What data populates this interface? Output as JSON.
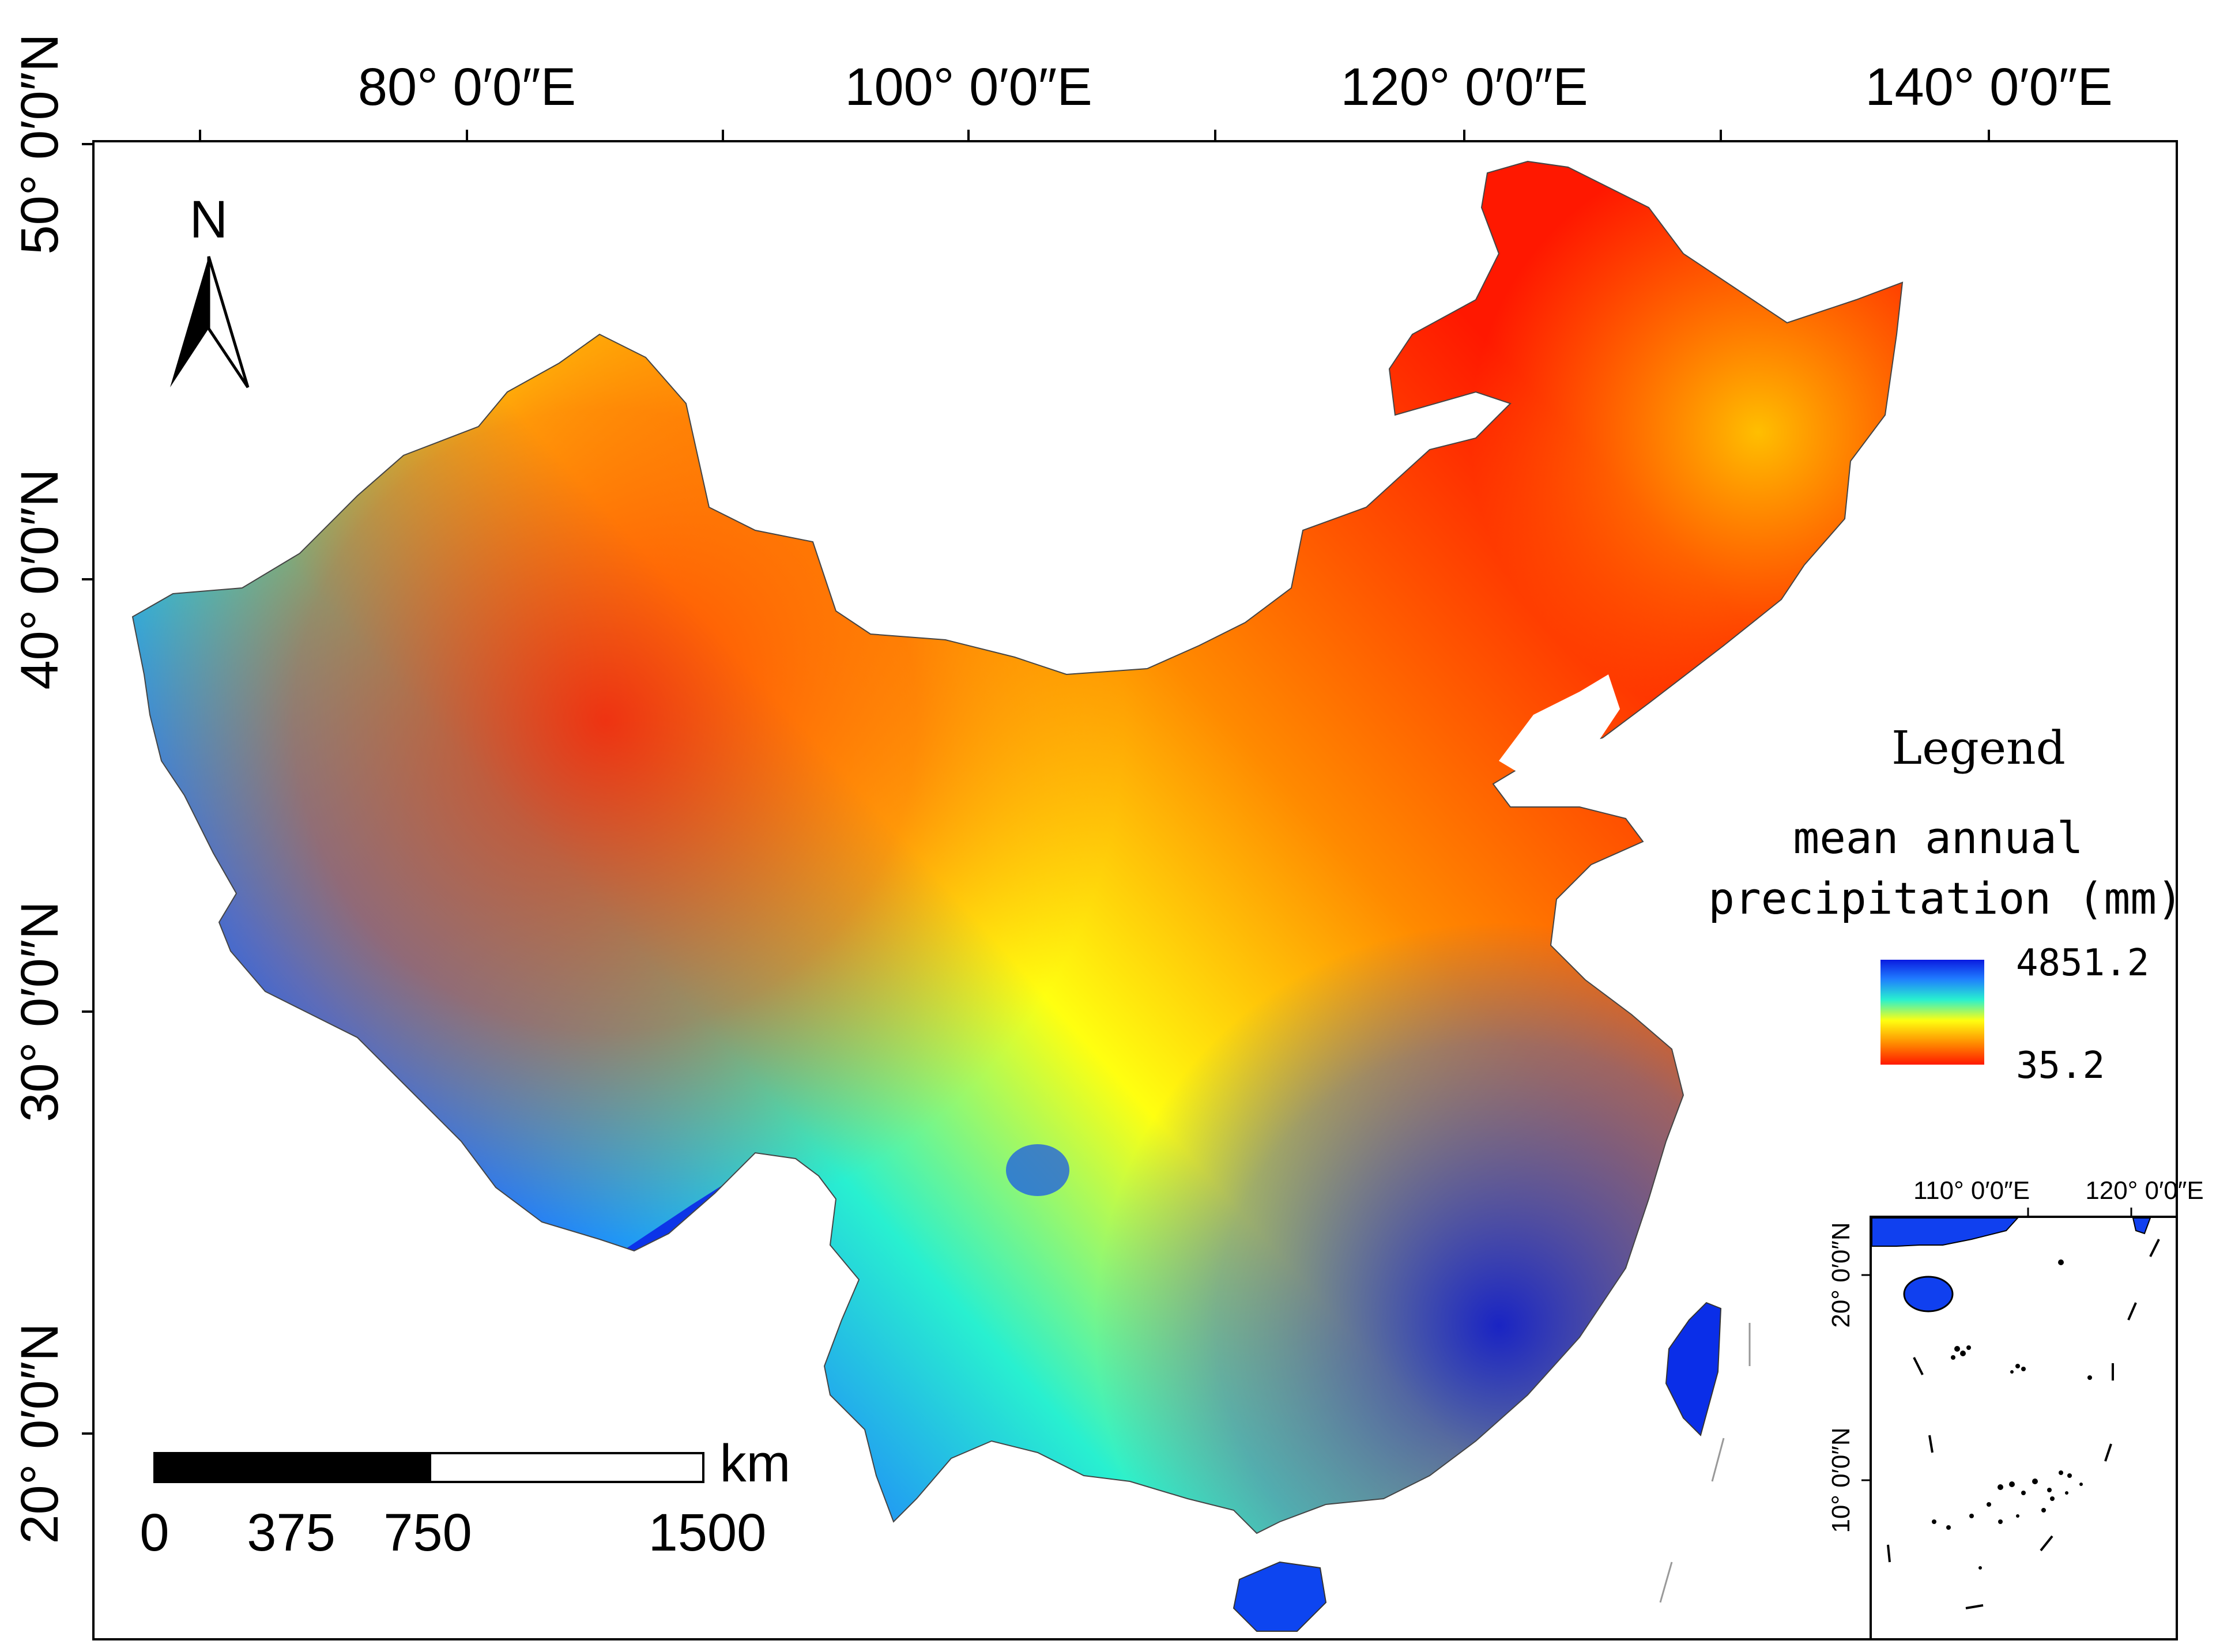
{
  "map": {
    "lon_labels": [
      "80° 0′0″E",
      "100° 0′0″E",
      "120° 0′0″E",
      "140° 0′0″E"
    ],
    "lat_labels": [
      "50° 0′0″N",
      "40° 0′0″N",
      "30° 0′0″N",
      "20° 0′0″N"
    ],
    "north_letter": "N",
    "scale_bar": {
      "unit": "km",
      "ticks": [
        "0",
        "375",
        "750",
        "1500"
      ]
    },
    "legend": {
      "title": "Legend",
      "subtitle_line1": "mean annual",
      "subtitle_line2": "precipitation (mm)",
      "max": "4851.2",
      "min": "35.2",
      "colors": [
        "#0a1be0",
        "#1f7bff",
        "#28f0d0",
        "#ffff10",
        "#ff8a00",
        "#ff1800"
      ]
    },
    "inset": {
      "lon_labels": [
        "110° 0′0″E",
        "120° 0′0″E"
      ],
      "lat_labels": [
        "20° 0′0″N",
        "10° 0′0″N"
      ]
    }
  }
}
